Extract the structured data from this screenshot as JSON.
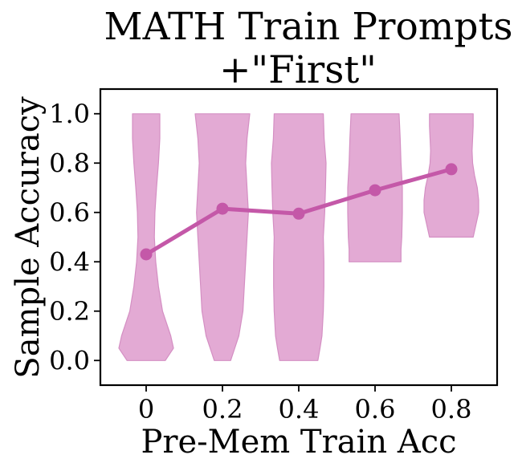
{
  "chart_data": {
    "type": "violin+line",
    "title_lines": [
      "MATH Train Prompts",
      "+\"First\""
    ],
    "xlabel": "Pre-Mem Train Acc",
    "ylabel": "Sample Accuracy",
    "categories": [
      "0",
      "0.2",
      "0.4",
      "0.6",
      "0.8"
    ],
    "x": [
      0,
      0.2,
      0.4,
      0.6,
      0.8
    ],
    "xlim": [
      -0.12,
      0.92
    ],
    "ylim": [
      -0.1,
      1.1
    ],
    "y_ticks": [
      0.0,
      0.2,
      0.4,
      0.6,
      0.8,
      1.0
    ],
    "y_tick_labels": [
      "0.0",
      "0.2",
      "0.4",
      "0.6",
      "0.8",
      "1.0"
    ],
    "mean_line": {
      "values": [
        0.43,
        0.615,
        0.595,
        0.69,
        0.775
      ]
    },
    "violins": [
      {
        "x": 0,
        "min": 0.0,
        "max": 1.0,
        "y": [
          0.0,
          0.05,
          0.1,
          0.2,
          0.3,
          0.4,
          0.5,
          0.6,
          0.7,
          0.8,
          0.9,
          1.0
        ],
        "w": [
          0.7,
          1.0,
          0.9,
          0.6,
          0.45,
          0.35,
          0.3,
          0.32,
          0.38,
          0.45,
          0.5,
          0.5
        ]
      },
      {
        "x": 0.2,
        "min": 0.0,
        "max": 1.0,
        "y": [
          0.0,
          0.05,
          0.1,
          0.2,
          0.3,
          0.4,
          0.5,
          0.6,
          0.7,
          0.8,
          0.9,
          1.0
        ],
        "w": [
          0.3,
          0.45,
          0.6,
          0.75,
          0.8,
          0.85,
          0.9,
          0.95,
          0.9,
          0.85,
          0.9,
          1.0
        ]
      },
      {
        "x": 0.4,
        "min": 0.0,
        "max": 1.0,
        "y": [
          0.0,
          0.05,
          0.1,
          0.2,
          0.3,
          0.4,
          0.5,
          0.6,
          0.7,
          0.8,
          0.9,
          1.0
        ],
        "w": [
          0.7,
          0.78,
          0.85,
          0.9,
          0.92,
          0.92,
          0.9,
          0.95,
          0.98,
          1.0,
          0.93,
          0.9
        ]
      },
      {
        "x": 0.6,
        "min": 0.4,
        "max": 1.0,
        "y": [
          0.4,
          0.45,
          0.5,
          0.6,
          0.7,
          0.8,
          0.9,
          1.0
        ],
        "w": [
          0.95,
          0.95,
          0.98,
          1.0,
          1.0,
          0.95,
          0.92,
          0.88
        ]
      },
      {
        "x": 0.8,
        "min": 0.5,
        "max": 1.0,
        "y": [
          0.5,
          0.55,
          0.6,
          0.65,
          0.7,
          0.75,
          0.8,
          0.85,
          0.9,
          0.95,
          1.0
        ],
        "w": [
          0.8,
          0.9,
          1.0,
          1.0,
          0.95,
          0.85,
          0.78,
          0.76,
          0.78,
          0.8,
          0.8
        ]
      }
    ],
    "colors": {
      "violin_fill": "#e3aad4",
      "violin_edge": "#d48fc3",
      "mean_line": "#c458a8"
    },
    "grid": false
  }
}
